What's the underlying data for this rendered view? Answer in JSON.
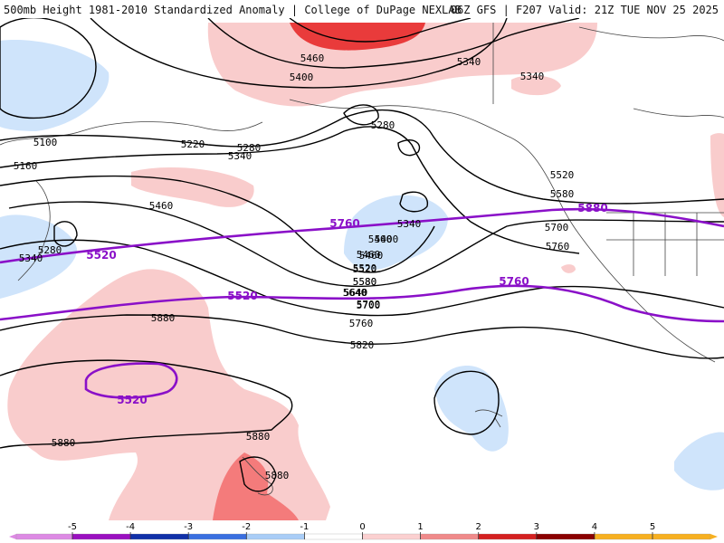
{
  "header": {
    "left_title": "500mb Height 1981-2010 Standardized Anomaly | College of DuPage NEXLAB",
    "right_title": "06Z GFS | F207 Valid: 21Z TUE NOV 25 2025"
  },
  "colors": {
    "neg_light": "#cfe4fb",
    "pos_light": "#f9cccc",
    "pos_med": "#f47b7b",
    "pos_dark": "#e93b3b",
    "contour": "#000000",
    "highlight_contour": "#8a10c8",
    "coast": "#333333"
  },
  "contour_labels": [
    "5460",
    "5400",
    "5340",
    "5340",
    "5280",
    "5100",
    "5220",
    "5280",
    "5340",
    "5160",
    "5460",
    "5400",
    "5460",
    "5520",
    "5580",
    "5640",
    "5700",
    "5340",
    "5400",
    "5460",
    "5520",
    "5580",
    "5640",
    "5700",
    "5760",
    "5820",
    "5280",
    "5340",
    "5520",
    "5580",
    "5700",
    "5760",
    "5880",
    "5880",
    "5880",
    "5880"
  ],
  "highlighted_contours": [
    "5520",
    "5760",
    "5520",
    "5760",
    "5880"
  ],
  "colorbar": {
    "ticks": [
      "-5",
      "-4",
      "-3",
      "-2",
      "-1",
      "0",
      "1",
      "2",
      "3",
      "4",
      "5"
    ],
    "colors": [
      "#dd8ae4",
      "#9a10c0",
      "#1030a8",
      "#3a6fe0",
      "#a9cdf7",
      "#ffffff",
      "#fbd0d0",
      "#f08a8a",
      "#d42020",
      "#8a0000",
      "#f7b020"
    ]
  }
}
